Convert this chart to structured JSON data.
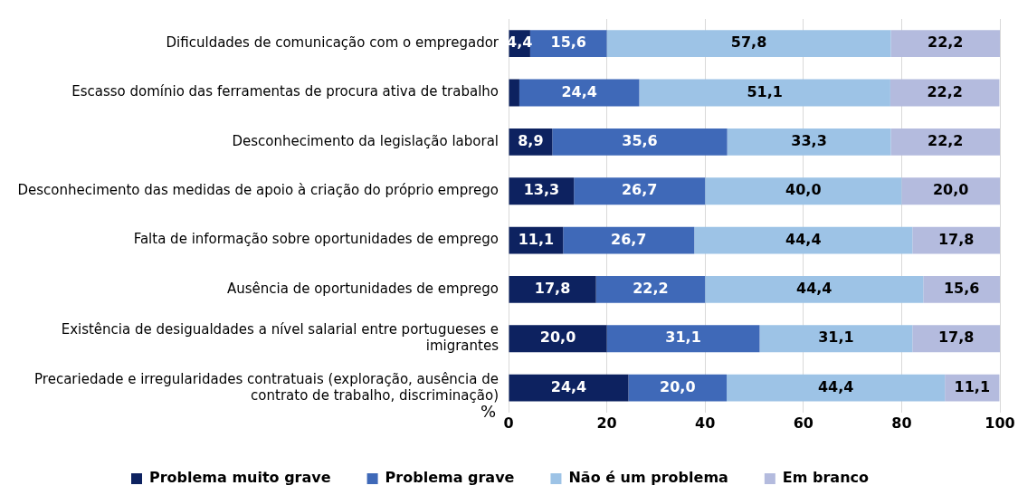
{
  "chart_data": {
    "type": "bar",
    "orientation": "horizontal",
    "stacked": true,
    "xlabel": "%",
    "categories": [
      "Dificuldades de comunicação com o empregador",
      "Escasso domínio das ferramentas de procura ativa de trabalho",
      "Desconhecimento da legislação laboral",
      "Desconhecimento das medidas de apoio à criação do próprio emprego",
      "Falta de informação sobre oportunidades de emprego",
      "Ausência de oportunidades de emprego",
      "Existência de desigualdades a nível salarial entre portugueses e imigrantes",
      "Precariedade e irregularidades contratuais (exploração, ausência de contrato de trabalho, discriminação)"
    ],
    "series": [
      {
        "name": "Problema muito grave",
        "color": "#0d2260",
        "values": [
          4.4,
          2.2,
          8.9,
          13.3,
          11.1,
          17.8,
          20.0,
          24.4
        ],
        "value_labels": [
          "4,4",
          null,
          "8,9",
          "13,3",
          "11,1",
          "17,8",
          "20,0",
          "24,4"
        ]
      },
      {
        "name": "Problema grave",
        "color": "#3f69b8",
        "values": [
          15.6,
          24.4,
          35.6,
          26.7,
          26.7,
          22.2,
          31.1,
          20.0
        ],
        "value_labels": [
          "15,6",
          "24,4",
          "35,6",
          "26,7",
          "26,7",
          "22,2",
          "31,1",
          "20,0"
        ]
      },
      {
        "name": "Não é um problema",
        "color": "#9dc3e6",
        "values": [
          57.8,
          51.1,
          33.3,
          40.0,
          44.4,
          44.4,
          31.1,
          44.4
        ],
        "value_labels": [
          "57,8",
          "51,1",
          "33,3",
          "40,0",
          "44,4",
          "44,4",
          "31,1",
          "44,4"
        ]
      },
      {
        "name": "Em branco",
        "color": "#b4bbde",
        "values": [
          22.2,
          22.2,
          22.2,
          20.0,
          17.8,
          15.6,
          17.8,
          11.1
        ],
        "value_labels": [
          "22,2",
          "22,2",
          "22,2",
          "20,0",
          "17,8",
          "15,6",
          "17,8",
          "11,1"
        ]
      }
    ],
    "xlim": [
      0,
      100
    ],
    "xticks": [
      0,
      20,
      40,
      60,
      80,
      100
    ],
    "grid": "x",
    "legend": "bottom"
  }
}
